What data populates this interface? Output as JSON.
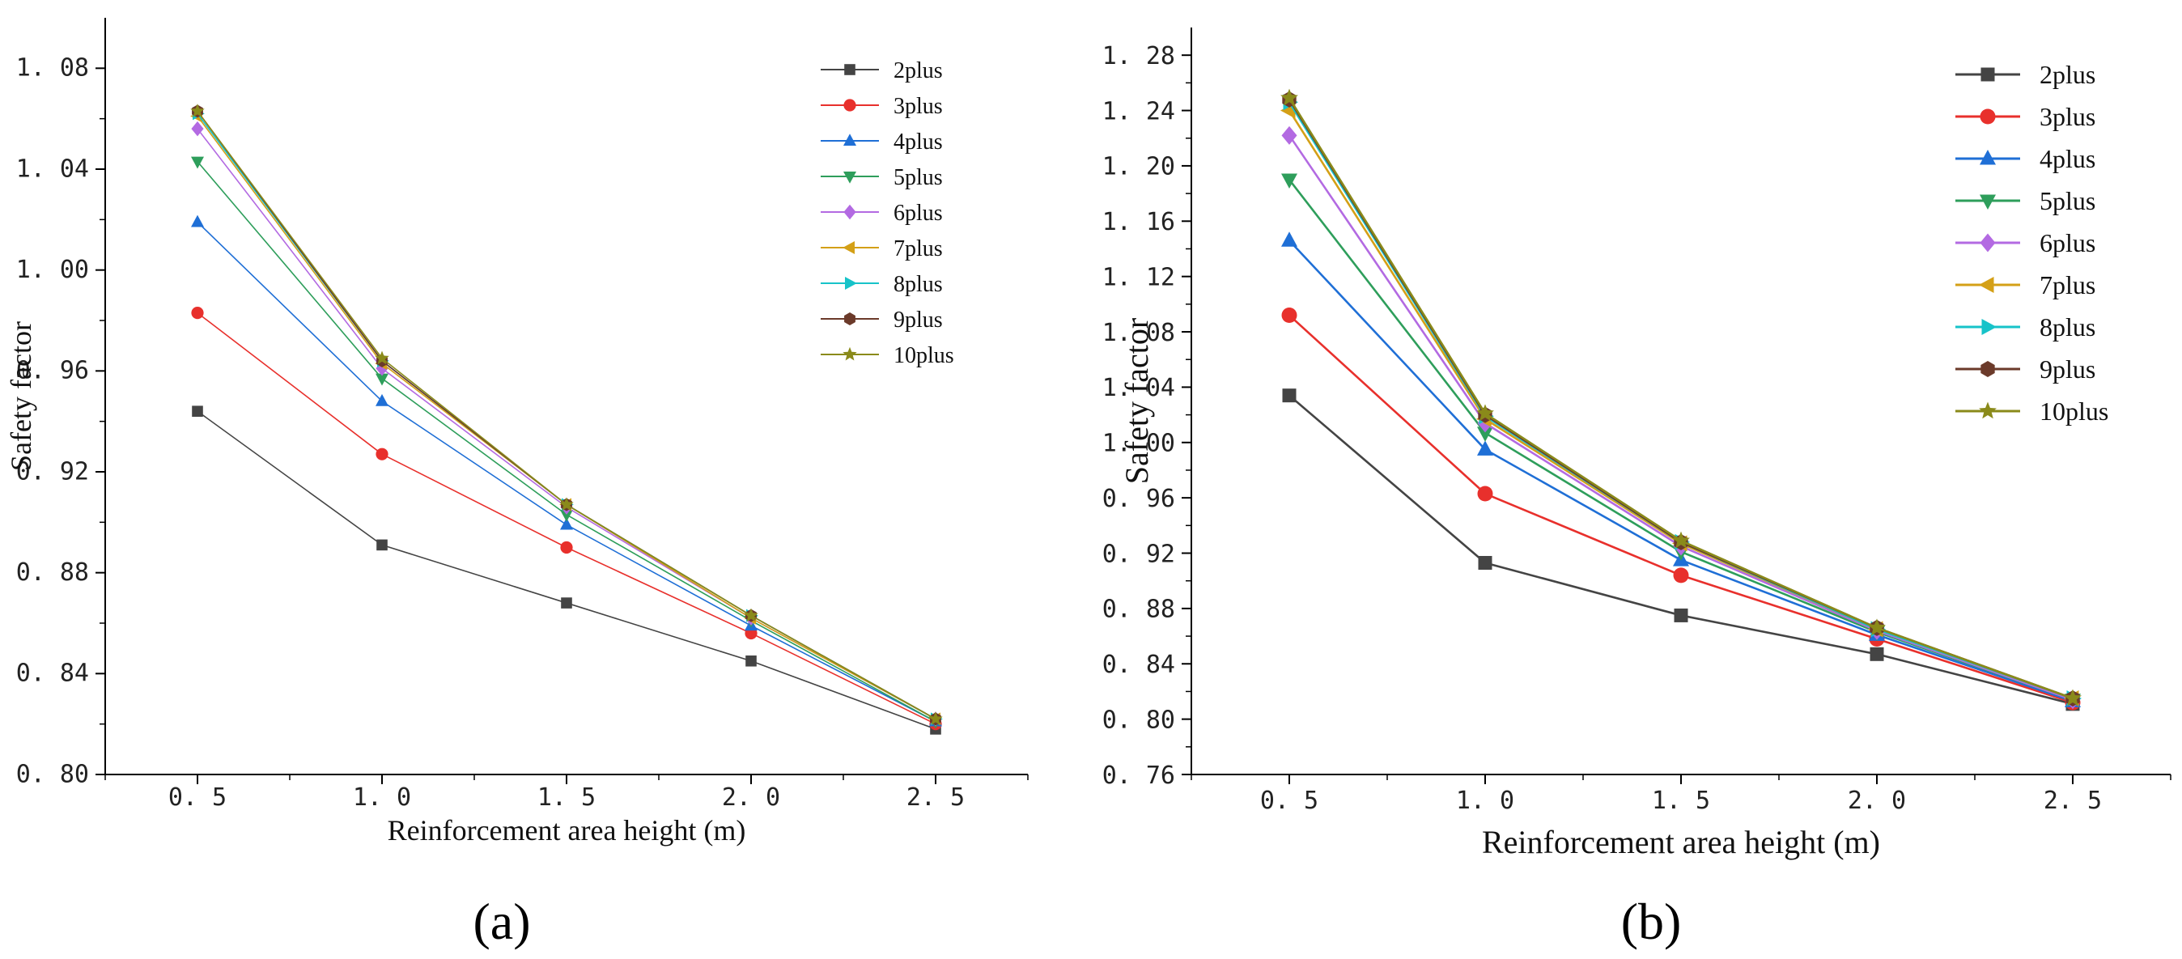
{
  "chart_data": [
    {
      "panel_label": "(a)",
      "type": "line",
      "xlabel": "Reinforcement area height (m)",
      "ylabel": "Safety factor",
      "x": [
        0.5,
        1.0,
        1.5,
        2.0,
        2.5
      ],
      "x_tick_labels": [
        "0. 5",
        "1. 0",
        "1. 5",
        "2. 0",
        "2. 5"
      ],
      "xlim": [
        0.25,
        2.75
      ],
      "ylim": [
        0.8,
        1.1
      ],
      "y_ticks": [
        0.8,
        0.84,
        0.88,
        0.92,
        0.96,
        1.0,
        1.04,
        1.08
      ],
      "y_tick_labels": [
        "0. 80",
        "0. 84",
        "0. 88",
        "0. 92",
        "0. 96",
        "1. 00",
        "1. 04",
        "1. 08"
      ],
      "legend_position": "top-right",
      "series": [
        {
          "name": "2plus",
          "color": "#444444",
          "marker": "square",
          "values": [
            0.944,
            0.891,
            0.868,
            0.845,
            0.818
          ]
        },
        {
          "name": "3plus",
          "color": "#e8302c",
          "marker": "circle",
          "values": [
            0.983,
            0.927,
            0.89,
            0.856,
            0.82
          ]
        },
        {
          "name": "4plus",
          "color": "#1f6fd6",
          "marker": "triangle-up",
          "values": [
            1.019,
            0.948,
            0.899,
            0.859,
            0.821
          ]
        },
        {
          "name": "5plus",
          "color": "#2e9e5b",
          "marker": "triangle-down",
          "values": [
            1.043,
            0.957,
            0.903,
            0.861,
            0.821
          ]
        },
        {
          "name": "6plus",
          "color": "#b36ae2",
          "marker": "diamond",
          "values": [
            1.056,
            0.961,
            0.906,
            0.862,
            0.822
          ]
        },
        {
          "name": "7plus",
          "color": "#d4a017",
          "marker": "triangle-left",
          "values": [
            1.061,
            0.963,
            0.907,
            0.862,
            0.822
          ]
        },
        {
          "name": "8plus",
          "color": "#17c3c9",
          "marker": "triangle-right",
          "values": [
            1.062,
            0.964,
            0.907,
            0.863,
            0.822
          ]
        },
        {
          "name": "9plus",
          "color": "#6b3a2a",
          "marker": "hexagon",
          "values": [
            1.063,
            0.964,
            0.907,
            0.863,
            0.822
          ]
        },
        {
          "name": "10plus",
          "color": "#8a8a1a",
          "marker": "star",
          "values": [
            1.063,
            0.965,
            0.907,
            0.863,
            0.822
          ]
        }
      ]
    },
    {
      "panel_label": "(b)",
      "type": "line",
      "xlabel": "Reinforcement area height (m)",
      "ylabel": "Safety factor",
      "x": [
        0.5,
        1.0,
        1.5,
        2.0,
        2.5
      ],
      "x_tick_labels": [
        "0. 5",
        "1. 0",
        "1. 5",
        "2. 0",
        "2. 5"
      ],
      "xlim": [
        0.25,
        2.75
      ],
      "ylim": [
        0.76,
        1.3
      ],
      "y_ticks": [
        0.76,
        0.8,
        0.84,
        0.88,
        0.92,
        0.96,
        1.0,
        1.04,
        1.08,
        1.12,
        1.16,
        1.2,
        1.24,
        1.28
      ],
      "y_tick_labels": [
        "0. 76",
        "0. 80",
        "0. 84",
        "0. 88",
        "0. 92",
        "0. 96",
        "1. 00",
        "1. 04",
        "1. 08",
        "1. 12",
        "1. 16",
        "1. 20",
        "1. 24",
        "1. 28"
      ],
      "legend_position": "top-right",
      "series": [
        {
          "name": "2plus",
          "color": "#444444",
          "marker": "square",
          "values": [
            1.034,
            0.913,
            0.875,
            0.847,
            0.811
          ]
        },
        {
          "name": "3plus",
          "color": "#e8302c",
          "marker": "circle",
          "values": [
            1.092,
            0.963,
            0.904,
            0.858,
            0.812
          ]
        },
        {
          "name": "4plus",
          "color": "#1f6fd6",
          "marker": "triangle-up",
          "values": [
            1.146,
            0.995,
            0.915,
            0.861,
            0.813
          ]
        },
        {
          "name": "5plus",
          "color": "#2e9e5b",
          "marker": "triangle-down",
          "values": [
            1.19,
            1.007,
            0.921,
            0.863,
            0.814
          ]
        },
        {
          "name": "6plus",
          "color": "#b36ae2",
          "marker": "diamond",
          "values": [
            1.222,
            1.014,
            0.925,
            0.864,
            0.814
          ]
        },
        {
          "name": "7plus",
          "color": "#d4a017",
          "marker": "triangle-left",
          "values": [
            1.24,
            1.017,
            0.927,
            0.865,
            0.815
          ]
        },
        {
          "name": "8plus",
          "color": "#17c3c9",
          "marker": "triangle-right",
          "values": [
            1.246,
            1.019,
            0.928,
            0.865,
            0.815
          ]
        },
        {
          "name": "9plus",
          "color": "#6b3a2a",
          "marker": "hexagon",
          "values": [
            1.248,
            1.02,
            0.928,
            0.866,
            0.815
          ]
        },
        {
          "name": "10plus",
          "color": "#8a8a1a",
          "marker": "star",
          "values": [
            1.249,
            1.021,
            0.929,
            0.866,
            0.815
          ]
        }
      ]
    }
  ]
}
